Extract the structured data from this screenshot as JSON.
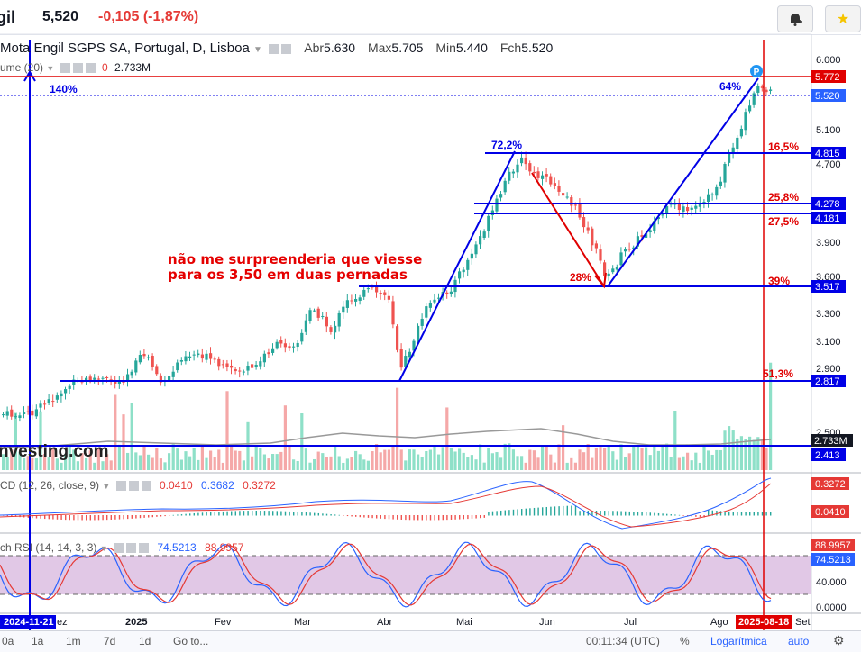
{
  "header": {
    "ticker": "gil",
    "price": "5,520",
    "change": "-0,105",
    "change_pct": "(-1,87%)",
    "alert_icon": "bell-plus-icon",
    "star_icon": "star-icon"
  },
  "legend": {
    "name": "Mota Engil SGPS SA, Portugal, D, Lisboa",
    "abr_label": "Abr",
    "abr": "5.630",
    "max_label": "Max",
    "max": "5.705",
    "min_label": "Min",
    "min": "5.440",
    "fch_label": "Fch",
    "fch": "5.520"
  },
  "volume": {
    "label": "ume (20)",
    "zero": "0",
    "value": "2.733M"
  },
  "macd": {
    "label": "CD (12, 26, close, 9)",
    "v1": "0.0410",
    "v2": "0.3682",
    "v3": "0.3272"
  },
  "rsi": {
    "label": "ch RSI (14, 14, 3, 3)",
    "v1": "74.5213",
    "v2": "88.9957"
  },
  "annotations": {
    "left_pct": "140%",
    "pct_722": "72,2%",
    "pct_28": "28%",
    "pct_64": "64%",
    "pct_165": "16,5%",
    "pct_258": "25,8%",
    "pct_275": "27,5%",
    "pct_39": "39%",
    "pct_513": "51,3%",
    "text_line1": "não me surpreenderia que viesse",
    "text_line2": "para os 3,50 em duas pernadas",
    "p_marker": "P"
  },
  "price_axis": [
    "6.000",
    "5.100",
    "4.700",
    "3.900",
    "3.600",
    "3.300",
    "3.100",
    "2.900",
    "2.500"
  ],
  "price_tags": {
    "current_red": "5.772",
    "current": "5.520",
    "l4815": "4.815",
    "l4278": "4.278",
    "l4181": "4.181",
    "l3517": "3.517",
    "l2817": "2.817",
    "l2413": "2.413",
    "vol": "2.733M",
    "macd_a": "0.3272",
    "macd_b": "0.0410",
    "rsi_a": "88.9957",
    "rsi_b": "74.5213",
    "rsi_40": "40.000",
    "rsi_0": "0.0000"
  },
  "time_axis": {
    "date_left": "2024-11-21",
    "dez": "ez",
    "y2025": "2025",
    "fev": "Fev",
    "mar": "Mar",
    "abr": "Abr",
    "mai": "Mai",
    "jun": "Jun",
    "jul": "Jul",
    "ago": "Ago",
    "date_right": "2025-08-18",
    "set": "Set"
  },
  "watermark": "nvesting.com",
  "bottom": {
    "b0": "0a",
    "b1": "1a",
    "b2": "1m",
    "b3": "7d",
    "b4": "1d",
    "goto": "Go to...",
    "time": "00:11:34 (UTC)",
    "pct": "%",
    "log": "Logarítmica",
    "auto": "auto",
    "gear_icon": "gear-icon"
  },
  "colors": {
    "up": "#26a69a",
    "down": "#ef5350",
    "blue_line": "#0000e6",
    "red_line": "#e00000",
    "rsi_band": "#e1c8e6"
  }
}
